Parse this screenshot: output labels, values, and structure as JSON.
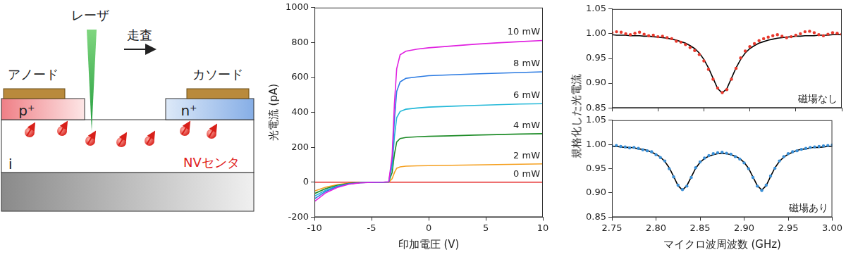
{
  "diagram": {
    "laser": "レーザ",
    "scan": "走査",
    "anode": "アノード",
    "cathode": "カソード",
    "p_region": "p⁺",
    "n_region": "n⁺",
    "i_region": "i",
    "nv_label": "NVセンタ"
  },
  "chart_data": [
    {
      "type": "line",
      "xlabel": "印加電圧 (V)",
      "ylabel": "光電流 (pA)",
      "xlim": [
        -10,
        10
      ],
      "xticks": [
        -10,
        -5,
        0,
        5,
        10
      ],
      "ylim": [
        -200,
        1000
      ],
      "yticks": [
        -200,
        0,
        200,
        400,
        600,
        800,
        1000
      ],
      "grid": false,
      "marker": "none",
      "line_style": "solid",
      "x": [
        -10,
        -9,
        -8,
        -7,
        -6,
        -5,
        -4,
        -3.5,
        -3.2,
        -3,
        -2.8,
        -2.5,
        -2,
        -1,
        0,
        2,
        4,
        6,
        8,
        10
      ],
      "series": [
        {
          "name": "10 mW",
          "color": "#e020e0",
          "values": [
            -110,
            -60,
            -30,
            -12,
            -4,
            -1,
            0,
            2,
            150,
            450,
            650,
            730,
            750,
            762,
            770,
            780,
            790,
            798,
            805,
            812
          ]
        },
        {
          "name": "8 mW",
          "color": "#2a7ae2",
          "values": [
            -95,
            -52,
            -25,
            -10,
            -3,
            -1,
            0,
            2,
            120,
            360,
            520,
            575,
            595,
            603,
            610,
            615,
            620,
            624,
            628,
            632
          ]
        },
        {
          "name": "6 mW",
          "color": "#22b8d8",
          "values": [
            -80,
            -45,
            -22,
            -9,
            -3,
            -1,
            0,
            1,
            90,
            260,
            370,
            405,
            418,
            425,
            430,
            435,
            440,
            444,
            448,
            450
          ]
        },
        {
          "name": "4 mW",
          "color": "#1e8c28",
          "values": [
            -65,
            -36,
            -18,
            -7,
            -2,
            -1,
            0,
            1,
            55,
            160,
            230,
            250,
            256,
            260,
            263,
            266,
            270,
            273,
            276,
            278
          ]
        },
        {
          "name": "2 mW",
          "color": "#f5a020",
          "values": [
            -50,
            -28,
            -14,
            -5,
            -2,
            -1,
            0,
            0,
            20,
            55,
            80,
            88,
            92,
            94,
            95,
            97,
            99,
            101,
            103,
            105
          ]
        },
        {
          "name": "0 mW",
          "color": "#e62626",
          "values": [
            0,
            0,
            0,
            0,
            0,
            0,
            0,
            0,
            0,
            0,
            0,
            0,
            0,
            0,
            0,
            0,
            0,
            0,
            0,
            0
          ]
        }
      ]
    },
    {
      "type": "scatter",
      "annotation": "磁場なし",
      "tick_labels": "y",
      "grid": false,
      "xlim": [
        2.75,
        3.0
      ],
      "xticks": [
        2.75,
        {
          "value": 2.8,
          "label": "2.80"
        },
        2.85,
        {
          "value": 2.9,
          "label": "2.90"
        },
        2.95,
        {
          "value": 3.0,
          "label": "3.00"
        }
      ],
      "ylim": [
        0.85,
        1.05
      ],
      "yticks": [
        0.85,
        {
          "value": 0.9,
          "label": "0.90"
        },
        0.95,
        {
          "value": 1.0,
          "label": "1.00"
        },
        1.05
      ],
      "x": [
        2.75,
        2.755,
        2.76,
        2.765,
        2.77,
        2.775,
        2.78,
        2.785,
        2.79,
        2.795,
        2.8,
        2.805,
        2.81,
        2.815,
        2.82,
        2.825,
        2.83,
        2.835,
        2.84,
        2.845,
        2.85,
        2.855,
        2.86,
        2.865,
        2.87,
        2.875,
        2.88,
        2.885,
        2.89,
        2.895,
        2.9,
        2.905,
        2.91,
        2.915,
        2.92,
        2.925,
        2.93,
        2.935,
        2.94,
        2.945,
        2.95,
        2.955,
        2.96,
        2.965,
        2.97,
        2.975,
        2.98,
        2.985,
        2.99,
        2.995,
        3.0
      ],
      "series": [
        {
          "color": "#e8382c",
          "marker": "circle",
          "line_style": "none",
          "values": [
            1.002,
            1.004,
            1.003,
            1.0,
            0.998,
            1.001,
            1.003,
            0.999,
            0.996,
            0.997,
            0.994,
            0.995,
            0.992,
            0.99,
            0.985,
            0.983,
            0.978,
            0.972,
            0.966,
            0.958,
            0.945,
            0.928,
            0.908,
            0.89,
            0.881,
            0.887,
            0.908,
            0.93,
            0.951,
            0.965,
            0.974,
            0.98,
            0.986,
            0.99,
            0.993,
            0.996,
            0.998,
            0.995,
            0.992,
            0.994,
            0.997,
            1.0,
            1.004,
            1.005,
            1.002,
            0.998,
            0.996,
            0.999,
            1.002,
            1.001,
            0.999
          ]
        },
        {
          "color": "#000000",
          "marker": "none",
          "line_style": "solid",
          "values": [
            0.998,
            0.997,
            0.997,
            0.997,
            0.996,
            0.996,
            0.996,
            0.995,
            0.995,
            0.994,
            0.993,
            0.992,
            0.991,
            0.989,
            0.987,
            0.984,
            0.981,
            0.976,
            0.97,
            0.961,
            0.948,
            0.931,
            0.91,
            0.889,
            0.88,
            0.889,
            0.91,
            0.931,
            0.948,
            0.961,
            0.97,
            0.976,
            0.981,
            0.984,
            0.987,
            0.989,
            0.991,
            0.992,
            0.993,
            0.994,
            0.995,
            0.995,
            0.996,
            0.996,
            0.996,
            0.997,
            0.997,
            0.997,
            0.998,
            0.998,
            0.998
          ]
        }
      ]
    },
    {
      "type": "scatter",
      "annotation": "磁場あり",
      "xlabel": "マイクロ波周波数 (GHz)",
      "ylabel": "規格化した光電流",
      "grid": false,
      "xlim": [
        2.75,
        3.0
      ],
      "xticks": [
        2.75,
        {
          "value": 2.8,
          "label": "2.80"
        },
        2.85,
        {
          "value": 2.9,
          "label": "2.90"
        },
        2.95,
        {
          "value": 3.0,
          "label": "3.00"
        }
      ],
      "ylim": [
        0.85,
        1.05
      ],
      "yticks": [
        0.85,
        {
          "value": 0.9,
          "label": "0.90"
        },
        0.95,
        {
          "value": 1.0,
          "label": "1.00"
        },
        1.05
      ],
      "x": [
        2.75,
        2.755,
        2.76,
        2.765,
        2.77,
        2.775,
        2.78,
        2.785,
        2.79,
        2.795,
        2.8,
        2.805,
        2.81,
        2.815,
        2.82,
        2.825,
        2.83,
        2.835,
        2.84,
        2.845,
        2.85,
        2.855,
        2.86,
        2.865,
        2.87,
        2.875,
        2.88,
        2.885,
        2.89,
        2.895,
        2.9,
        2.905,
        2.91,
        2.915,
        2.92,
        2.925,
        2.93,
        2.935,
        2.94,
        2.945,
        2.95,
        2.955,
        2.96,
        2.965,
        2.97,
        2.975,
        2.98,
        2.985,
        2.99,
        2.995,
        3.0
      ],
      "series": [
        {
          "color": "#3a8fd6",
          "marker": "circle",
          "line_style": "none",
          "values": [
            0.997,
            0.998,
            0.996,
            0.995,
            0.993,
            0.994,
            0.992,
            0.989,
            0.987,
            0.985,
            0.979,
            0.973,
            0.966,
            0.95,
            0.933,
            0.916,
            0.907,
            0.914,
            0.932,
            0.952,
            0.964,
            0.972,
            0.977,
            0.981,
            0.983,
            0.984,
            0.982,
            0.98,
            0.975,
            0.97,
            0.962,
            0.95,
            0.932,
            0.914,
            0.905,
            0.916,
            0.935,
            0.951,
            0.966,
            0.975,
            0.981,
            0.985,
            0.987,
            0.99,
            0.992,
            0.994,
            0.995,
            0.996,
            0.997,
            0.998,
            0.999
          ]
        },
        {
          "color": "#000000",
          "marker": "none",
          "line_style": "solid",
          "values": [
            0.996,
            0.996,
            0.995,
            0.994,
            0.994,
            0.993,
            0.991,
            0.99,
            0.988,
            0.984,
            0.98,
            0.974,
            0.965,
            0.952,
            0.934,
            0.915,
            0.906,
            0.915,
            0.933,
            0.951,
            0.963,
            0.971,
            0.976,
            0.979,
            0.981,
            0.982,
            0.981,
            0.979,
            0.976,
            0.971,
            0.963,
            0.951,
            0.933,
            0.915,
            0.906,
            0.915,
            0.934,
            0.952,
            0.965,
            0.974,
            0.98,
            0.984,
            0.988,
            0.99,
            0.991,
            0.993,
            0.994,
            0.994,
            0.995,
            0.996,
            0.996
          ]
        }
      ]
    }
  ]
}
